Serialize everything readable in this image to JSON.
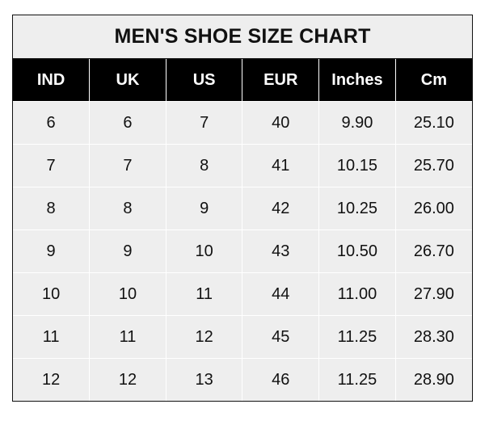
{
  "title": "MEN'S SHOE SIZE CHART",
  "columns": [
    "IND",
    "UK",
    "US",
    "EUR",
    "Inches",
    "Cm"
  ],
  "rows": [
    [
      "6",
      "6",
      "7",
      "40",
      "9.90",
      "25.10"
    ],
    [
      "7",
      "7",
      "8",
      "41",
      "10.15",
      "25.70"
    ],
    [
      "8",
      "8",
      "9",
      "42",
      "10.25",
      "26.00"
    ],
    [
      "9",
      "9",
      "10",
      "43",
      "10.50",
      "26.70"
    ],
    [
      "10",
      "10",
      "11",
      "44",
      "11.00",
      "27.90"
    ],
    [
      "11",
      "11",
      "12",
      "45",
      "11.25",
      "28.30"
    ],
    [
      "12",
      "12",
      "13",
      "46",
      "11.25",
      "28.90"
    ]
  ]
}
